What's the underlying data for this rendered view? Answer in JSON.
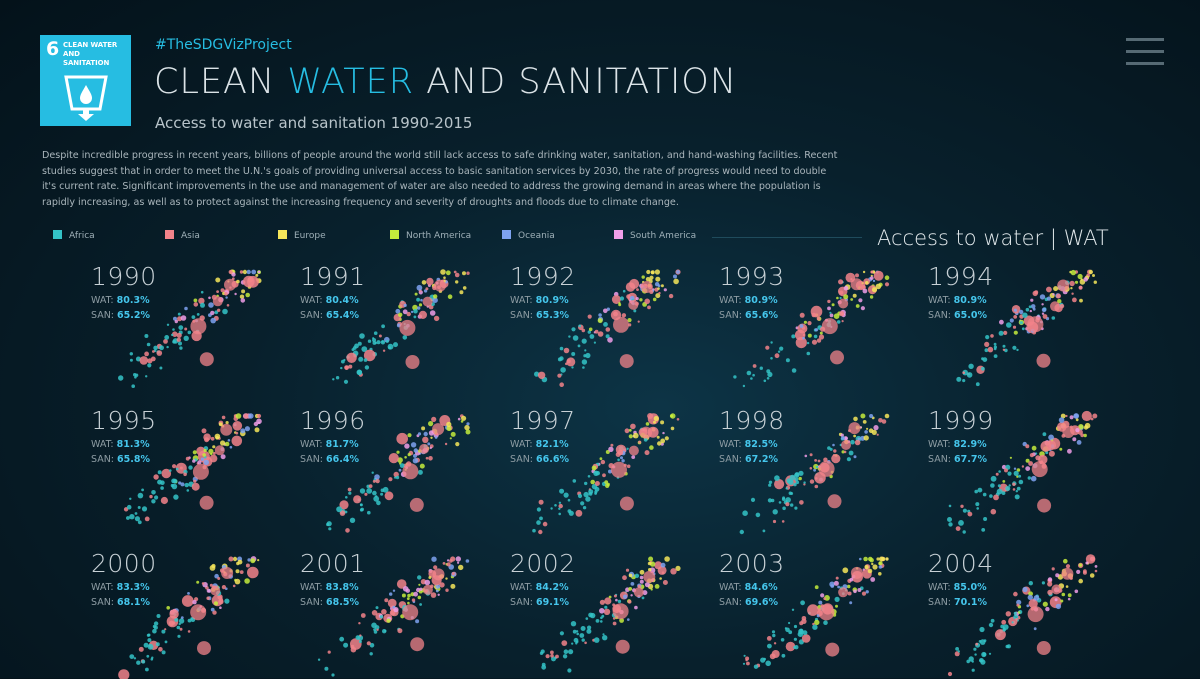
{
  "header": {
    "logo": {
      "number": "6",
      "label": "CLEAN WATER AND SANITATION",
      "icon": "water-glass-icon",
      "color": "#26bde2"
    },
    "hashtag": "#TheSDGVizProject",
    "title_part1": "CLEAN ",
    "title_accent": "WATER",
    "title_part2": " AND SANITATION",
    "subtitle": "Access to water and sanitation 1990-2015",
    "description": "Despite incredible progress in recent years, billions of people around the world still lack access to safe drinking water, sanitation, and hand-washing facilities. Recent studies suggest that in order to meet the U.N.'s goals of providing universal access to basic sanitation services by 2030, the rate of progress would need to double it's current rate.  Significant improvements in the use and management of water are also needed to address the growing demand in areas where the population is rapidly increasing, as well as to protect against the increasing frequency and severity of droughts and floods due to climate change.",
    "menu_icon": "hamburger-menu-icon"
  },
  "legend": [
    {
      "name": "Africa",
      "color": "#34c3c7"
    },
    {
      "name": "Asia",
      "color": "#f2838a"
    },
    {
      "name": "Europe",
      "color": "#f6e65a"
    },
    {
      "name": "North America",
      "color": "#c4ec3c"
    },
    {
      "name": "Oceania",
      "color": "#7ea2f0"
    },
    {
      "name": "South America",
      "color": "#f09ee8"
    }
  ],
  "metric_title": "Access to water | WAT",
  "stat_labels": {
    "wat": "WAT: ",
    "san": "SAN: "
  },
  "chart_data": {
    "type": "scatter",
    "series_names": [
      "Africa",
      "Asia",
      "Europe",
      "North America",
      "Oceania",
      "South America"
    ],
    "panels": [
      {
        "year": "1990",
        "wat": "80.3%",
        "san": "65.2%"
      },
      {
        "year": "1991",
        "wat": "80.4%",
        "san": "65.4%"
      },
      {
        "year": "1992",
        "wat": "80.9%",
        "san": "65.3%"
      },
      {
        "year": "1993",
        "wat": "80.9%",
        "san": "65.6%"
      },
      {
        "year": "1994",
        "wat": "80.9%",
        "san": "65.0%"
      },
      {
        "year": "1995",
        "wat": "81.3%",
        "san": "65.8%"
      },
      {
        "year": "1996",
        "wat": "81.7%",
        "san": "66.4%"
      },
      {
        "year": "1997",
        "wat": "82.1%",
        "san": "66.6%"
      },
      {
        "year": "1998",
        "wat": "82.5%",
        "san": "67.2%"
      },
      {
        "year": "1999",
        "wat": "82.9%",
        "san": "67.7%"
      },
      {
        "year": "2000",
        "wat": "83.3%",
        "san": "68.1%"
      },
      {
        "year": "2001",
        "wat": "83.8%",
        "san": "68.5%"
      },
      {
        "year": "2002",
        "wat": "84.2%",
        "san": "69.1%"
      },
      {
        "year": "2003",
        "wat": "84.6%",
        "san": "69.6%"
      },
      {
        "year": "2004",
        "wat": "85.0%",
        "san": "70.1%"
      }
    ]
  }
}
